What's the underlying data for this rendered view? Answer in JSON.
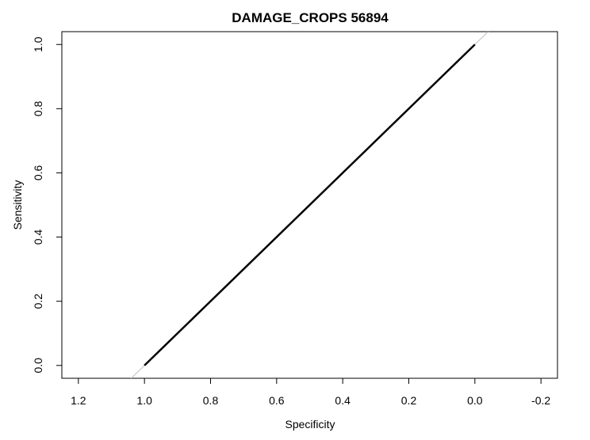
{
  "chart_data": {
    "type": "line",
    "title": "DAMAGE_CROPS  56894",
    "xlabel": "Specificity",
    "ylabel": "Sensitivity",
    "x_reversed": true,
    "xlim": [
      1.25,
      -0.25
    ],
    "ylim": [
      -0.04,
      1.04
    ],
    "x_ticks": [
      1.2,
      1.0,
      0.8,
      0.6,
      0.4,
      0.2,
      0.0,
      -0.2
    ],
    "x_tick_labels": [
      "1.2",
      "1.0",
      "0.8",
      "0.6",
      "0.4",
      "0.2",
      "0.0",
      "-0.2"
    ],
    "y_ticks": [
      0.0,
      0.2,
      0.4,
      0.6,
      0.8,
      1.0
    ],
    "y_tick_labels": [
      "0.0",
      "0.2",
      "0.4",
      "0.6",
      "0.8",
      "1.0"
    ],
    "grid": false,
    "reference_line": {
      "description": "diagonal",
      "color": "#bfbfbf"
    },
    "series": [
      {
        "color": "#000000",
        "x": [
          1.0,
          0.0
        ],
        "y": [
          0.0,
          1.0
        ]
      }
    ]
  }
}
